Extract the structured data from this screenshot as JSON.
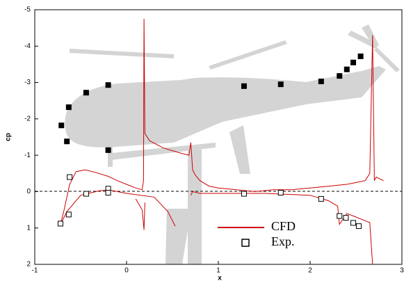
{
  "chart_data": {
    "type": "scatter-line",
    "x_label": "x",
    "y_label": "cp",
    "xlim": [
      -1,
      3
    ],
    "xticks": [
      -1,
      0,
      1,
      2,
      3
    ],
    "ylim": [
      2,
      -5
    ],
    "yticks": [
      -5,
      -4,
      -3,
      -2,
      -1,
      0,
      1,
      2
    ],
    "series": [
      {
        "name": "CFD",
        "kind": "line",
        "color": "#cc0000",
        "x": [
          -0.72,
          -0.68,
          -0.62,
          -0.55,
          -0.45,
          -0.3,
          -0.2,
          -0.1,
          0,
          0.1,
          0.17,
          0.185,
          0.19,
          0.2,
          0.25,
          0.4,
          0.6,
          0.68,
          0.7,
          0.72,
          0.75,
          0.8,
          0.9,
          1.0,
          1.2,
          1.4,
          1.6,
          1.8,
          2.0,
          2.2,
          2.4,
          2.5,
          2.6,
          2.65,
          2.68,
          2.7,
          2.72,
          2.8,
          null,
          -0.72,
          -0.65,
          -0.5,
          -0.3,
          -0.2,
          0,
          0.3,
          0.45,
          0.53,
          null,
          0.1,
          0.17,
          0.19,
          0.2,
          null,
          0.7,
          0.72,
          0.8,
          1.0,
          1.5,
          2.0,
          2.2,
          2.3,
          2.32,
          2.4,
          2.5,
          2.6,
          2.65,
          2.68
        ],
        "values": [
          0.9,
          0.5,
          -0.2,
          -0.55,
          -0.6,
          -0.5,
          -0.42,
          -0.3,
          -0.2,
          -0.1,
          -0.05,
          -0.3,
          -4.75,
          -1.6,
          -1.4,
          -1.2,
          -1.05,
          -1.0,
          -1.35,
          -0.6,
          -0.45,
          -0.3,
          -0.15,
          -0.1,
          -0.05,
          0,
          -0.05,
          -0.05,
          -0.1,
          -0.15,
          -0.2,
          -0.25,
          -0.3,
          -0.5,
          -4.3,
          -0.3,
          -0.4,
          -0.3,
          null,
          0.9,
          0.55,
          0.1,
          -0.02,
          -0.05,
          0.05,
          0.15,
          0.55,
          0.95,
          null,
          0.2,
          0.5,
          1.05,
          0.3,
          null,
          0.1,
          0.0,
          0.05,
          0.05,
          0.05,
          0.1,
          0.25,
          0.4,
          0.9,
          0.6,
          0.7,
          0.8,
          0.85,
          2.0
        ]
      },
      {
        "name": "Exp.",
        "kind": "open",
        "color": "#000000",
        "x": [
          -0.72,
          -0.63,
          -0.62,
          -0.44,
          -0.2,
          -0.2,
          1.28,
          1.68,
          2.12,
          2.32,
          2.39,
          2.47,
          2.53
        ],
        "values": [
          0.88,
          0.63,
          -0.4,
          0.06,
          -0.08,
          0.03,
          0.06,
          0.03,
          0.2,
          0.67,
          0.72,
          0.86,
          0.95
        ]
      },
      {
        "kind": "filled",
        "color": "#000000",
        "x": [
          -0.71,
          -0.63,
          -0.65,
          -0.44,
          -0.2,
          -0.2,
          1.28,
          1.68,
          2.12,
          2.32,
          2.4,
          2.47,
          2.55
        ],
        "values": [
          -1.82,
          -2.32,
          -1.38,
          -2.72,
          -2.93,
          -1.14,
          -2.9,
          -2.95,
          -3.03,
          -3.18,
          -3.36,
          -3.55,
          -3.72
        ]
      }
    ]
  }
}
